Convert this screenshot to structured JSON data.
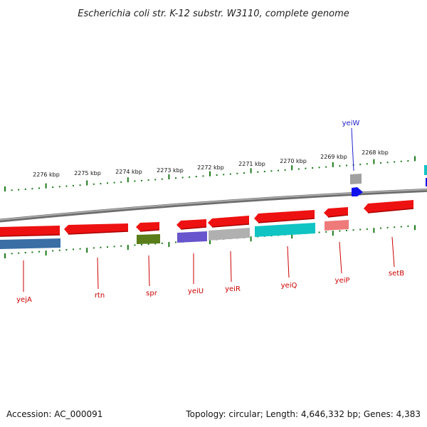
{
  "title": "Escherichia coli str. K-12 substr. W3110, complete genome",
  "footer": {
    "accession": "Accession: AC_000091",
    "topology": "Topology: circular; Length: 4,646,332 bp; Genes: 4,383"
  },
  "colors": {
    "backbone": "#808080",
    "ticks": "#1a7a1a",
    "forward_gene": "#ee1111",
    "forward_label": "#2222cc",
    "reverse_label": "#cc0000"
  },
  "scale_labels": [
    "2276 kbp",
    "2275 kbp",
    "2274 kbp",
    "2273 kbp",
    "2272 kbp",
    "2271 kbp",
    "2270 kbp",
    "2269 kbp",
    "2268 kbp"
  ],
  "genes": [
    {
      "name": "yejA",
      "strand": "reverse",
      "color": "#ee1111",
      "sub_color": "#3a6ea5"
    },
    {
      "name": "rtn",
      "strand": "reverse",
      "color": "#ee1111",
      "sub_color": null
    },
    {
      "name": "spr",
      "strand": "reverse",
      "color": "#ee1111",
      "sub_color": "#5a7d1a"
    },
    {
      "name": "yeiU",
      "strand": "reverse",
      "color": "#ee1111",
      "sub_color": "#6655cc"
    },
    {
      "name": "yeiR",
      "strand": "reverse",
      "color": "#ee1111",
      "sub_color": "#b0b0b0"
    },
    {
      "name": "yeiQ",
      "strand": "reverse",
      "color": "#ee1111",
      "sub_color": "#11c4c4"
    },
    {
      "name": "yeiP",
      "strand": "reverse",
      "color": "#ee1111",
      "sub_color": "#ee7a7a"
    },
    {
      "name": "setB",
      "strand": "reverse",
      "color": "#ee1111",
      "sub_color": null
    },
    {
      "name": "yeiW",
      "strand": "forward",
      "color": "#1111ee",
      "sub_color": "#a0a0a0"
    }
  ]
}
